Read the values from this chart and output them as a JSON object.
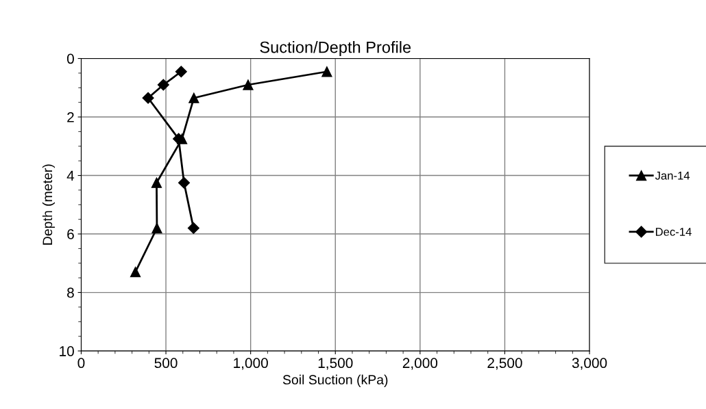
{
  "chart_data": {
    "type": "line",
    "title": "Suction/Depth Profile",
    "xlabel": "Soil Suction (kPa)",
    "ylabel": "Depth (meter)",
    "series": [
      {
        "name": "Jan-14",
        "color": "#000000",
        "marker": "triangle",
        "x": [
          1450,
          985,
          665,
          595,
          445,
          447,
          320
        ],
        "values": [
          0.45,
          0.9,
          1.35,
          2.75,
          4.25,
          5.8,
          7.3
        ]
      },
      {
        "name": "Dec-14",
        "color": "#000000",
        "marker": "diamond",
        "x": [
          590,
          485,
          395,
          575,
          607,
          663
        ],
        "values": [
          0.45,
          0.9,
          1.35,
          2.75,
          4.25,
          5.8
        ]
      }
    ],
    "xlim": [
      0,
      3000
    ],
    "xticks": [
      {
        "value": 0,
        "label": "0"
      },
      {
        "value": 500,
        "label": "500"
      },
      {
        "value": 1000,
        "label": "1,000"
      },
      {
        "value": 1500,
        "label": "1,500"
      },
      {
        "value": 2000,
        "label": "2,000"
      },
      {
        "value": 2500,
        "label": "2,500"
      },
      {
        "value": 3000,
        "label": "3,000"
      }
    ],
    "ylim": [
      10,
      0
    ],
    "yticks": [
      0,
      2,
      4,
      6,
      8,
      10
    ],
    "grid": true,
    "legend": "right",
    "line_style": "solid"
  }
}
